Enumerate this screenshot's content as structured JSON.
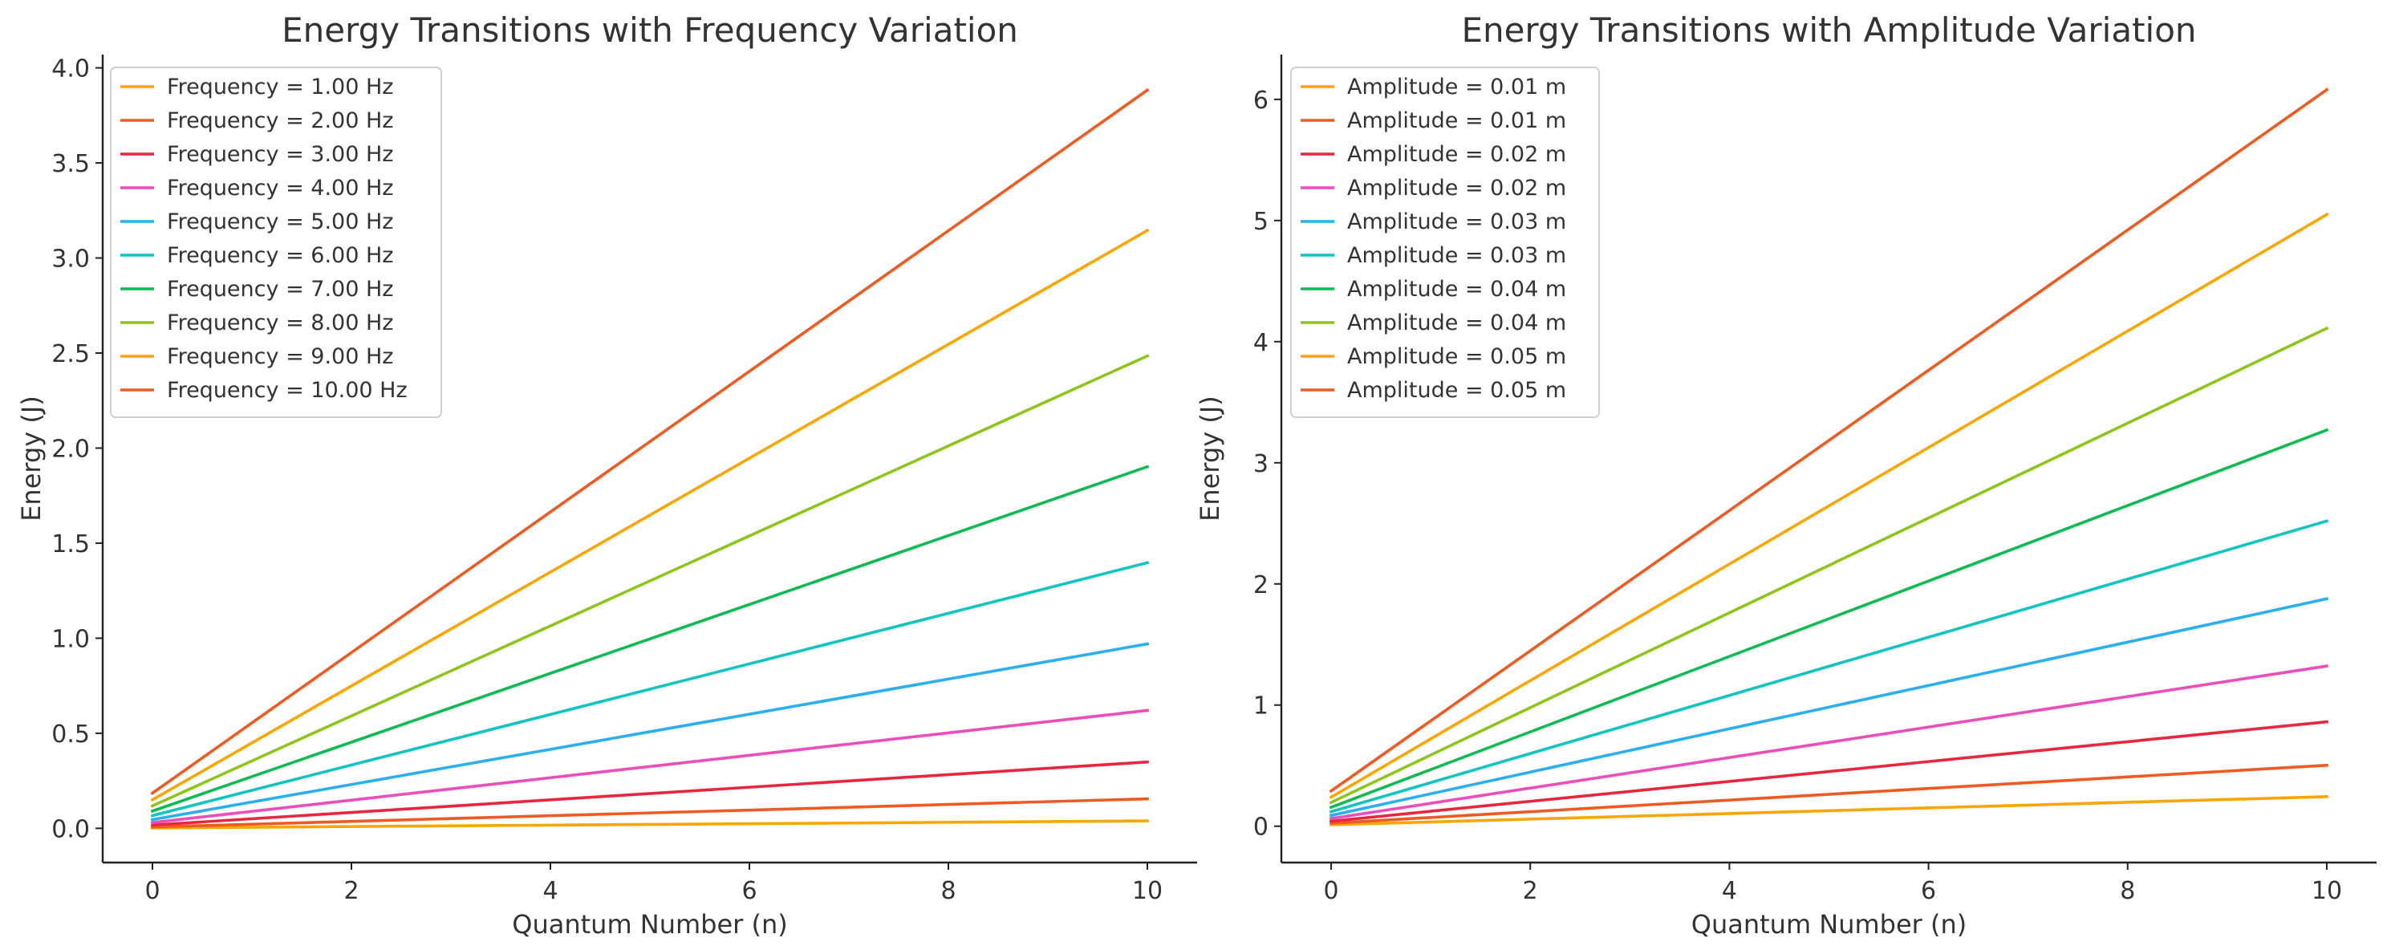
{
  "chart_data": [
    {
      "type": "line",
      "title": "Energy Transitions with Frequency Variation",
      "xlabel": "Quantum Number (n)",
      "ylabel": "Energy (J)",
      "xlim": [
        -0.5,
        10.5
      ],
      "ylim": [
        -0.18,
        4.07
      ],
      "xticks": [
        "0",
        "2",
        "4",
        "6",
        "8",
        "10"
      ],
      "yticks": [
        "0.0",
        "0.5",
        "1.0",
        "1.5",
        "2.0",
        "2.5",
        "3.0",
        "3.5",
        "4.0"
      ],
      "grid": false,
      "legend_position": "top-left",
      "series": [
        {
          "name": "Frequency = 1.00 Hz",
          "color": "#F9A602",
          "x": [
            0,
            10
          ],
          "y": [
            0.002,
            0.039
          ]
        },
        {
          "name": "Frequency = 2.00 Hz",
          "color": "#EE5B22",
          "x": [
            0,
            10
          ],
          "y": [
            0.007,
            0.155
          ]
        },
        {
          "name": "Frequency = 3.00 Hz",
          "color": "#E8273F",
          "x": [
            0,
            10
          ],
          "y": [
            0.017,
            0.349
          ]
        },
        {
          "name": "Frequency = 4.00 Hz",
          "color": "#EC4DB8",
          "x": [
            0,
            10
          ],
          "y": [
            0.03,
            0.62
          ]
        },
        {
          "name": "Frequency = 5.00 Hz",
          "color": "#2AAFF0",
          "x": [
            0,
            10
          ],
          "y": [
            0.046,
            0.97
          ]
        },
        {
          "name": "Frequency = 6.00 Hz",
          "color": "#10C4C0",
          "x": [
            0,
            10
          ],
          "y": [
            0.067,
            1.397
          ]
        },
        {
          "name": "Frequency = 7.00 Hz",
          "color": "#0DBB52",
          "x": [
            0,
            10
          ],
          "y": [
            0.091,
            1.902
          ]
        },
        {
          "name": "Frequency = 8.00 Hz",
          "color": "#8CC61A",
          "x": [
            0,
            10
          ],
          "y": [
            0.118,
            2.485
          ]
        },
        {
          "name": "Frequency = 9.00 Hz",
          "color": "#F9A602",
          "x": [
            0,
            10
          ],
          "y": [
            0.15,
            3.145
          ]
        },
        {
          "name": "Frequency = 10.00 Hz",
          "color": "#EE5B22",
          "x": [
            0,
            10
          ],
          "y": [
            0.185,
            3.883
          ]
        }
      ]
    },
    {
      "type": "line",
      "title": "Energy Transitions with Amplitude Variation",
      "xlabel": "Quantum Number (n)",
      "ylabel": "Energy (J)",
      "xlim": [
        -0.5,
        10.5
      ],
      "ylim": [
        -0.3,
        6.37
      ],
      "xticks": [
        "0",
        "2",
        "4",
        "6",
        "8",
        "10"
      ],
      "yticks": [
        "0",
        "1",
        "2",
        "3",
        "4",
        "5",
        "6"
      ],
      "grid": false,
      "legend_position": "top-left",
      "series": [
        {
          "name": "Amplitude = 0.01 m",
          "color": "#F9A602",
          "x": [
            0,
            10
          ],
          "y": [
            0.012,
            0.244
          ]
        },
        {
          "name": "Amplitude = 0.01 m",
          "color": "#EE5B22",
          "x": [
            0,
            10
          ],
          "y": [
            0.024,
            0.503
          ]
        },
        {
          "name": "Amplitude = 0.02 m",
          "color": "#E8273F",
          "x": [
            0,
            10
          ],
          "y": [
            0.041,
            0.862
          ]
        },
        {
          "name": "Amplitude = 0.02 m",
          "color": "#EC4DB8",
          "x": [
            0,
            10
          ],
          "y": [
            0.063,
            1.322
          ]
        },
        {
          "name": "Amplitude = 0.03 m",
          "color": "#2AAFF0",
          "x": [
            0,
            10
          ],
          "y": [
            0.089,
            1.877
          ]
        },
        {
          "name": "Amplitude = 0.03 m",
          "color": "#10C4C0",
          "x": [
            0,
            10
          ],
          "y": [
            0.12,
            2.52
          ]
        },
        {
          "name": "Amplitude = 0.04 m",
          "color": "#0DBB52",
          "x": [
            0,
            10
          ],
          "y": [
            0.156,
            3.27
          ]
        },
        {
          "name": "Amplitude = 0.04 m",
          "color": "#8CC61A",
          "x": [
            0,
            10
          ],
          "y": [
            0.196,
            4.11
          ]
        },
        {
          "name": "Amplitude = 0.05 m",
          "color": "#F9A602",
          "x": [
            0,
            10
          ],
          "y": [
            0.24,
            5.05
          ]
        },
        {
          "name": "Amplitude = 0.05 m",
          "color": "#EE5B22",
          "x": [
            0,
            10
          ],
          "y": [
            0.29,
            6.08
          ]
        }
      ]
    }
  ]
}
